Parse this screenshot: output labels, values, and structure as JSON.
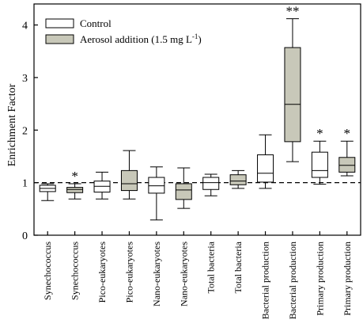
{
  "chart_data": {
    "type": "box",
    "ylabel": "Enrichment Factor",
    "xlabel": "",
    "ylim": [
      0,
      4.4
    ],
    "yticks": [
      0,
      1,
      2,
      3,
      4
    ],
    "reference_line": 1,
    "legend_position": "top-left",
    "series": [
      {
        "name": "Control",
        "color": "#ffffff"
      },
      {
        "name": "Aerosol addition (1.5 mg L",
        "name_sup": "-1",
        "name_suffix": ")",
        "color": "#c8c8b9"
      }
    ],
    "boxes": [
      {
        "category": "Synechococcus",
        "series": 0,
        "whisker_low": 0.66,
        "q1": 0.83,
        "median": 0.89,
        "q3": 0.95,
        "whisker_high": 0.98,
        "sig": ""
      },
      {
        "category": "Synechococcus",
        "series": 1,
        "whisker_low": 0.69,
        "q1": 0.81,
        "median": 0.87,
        "q3": 0.91,
        "whisker_high": 0.98,
        "sig": "*"
      },
      {
        "category": "Pico-eukaryotes",
        "series": 0,
        "whisker_low": 0.69,
        "q1": 0.82,
        "median": 0.93,
        "q3": 1.03,
        "whisker_high": 1.2,
        "sig": ""
      },
      {
        "category": "Pico-eukaryotes",
        "series": 1,
        "whisker_low": 0.69,
        "q1": 0.85,
        "median": 0.98,
        "q3": 1.23,
        "whisker_high": 1.61,
        "sig": ""
      },
      {
        "category": "Nano-eukaryotes",
        "series": 0,
        "whisker_low": 0.29,
        "q1": 0.8,
        "median": 0.94,
        "q3": 1.1,
        "whisker_high": 1.3,
        "sig": ""
      },
      {
        "category": "Nano-eukaryotes",
        "series": 1,
        "whisker_low": 0.51,
        "q1": 0.68,
        "median": 0.86,
        "q3": 0.98,
        "whisker_high": 1.28,
        "sig": ""
      },
      {
        "category": "Total bacteria",
        "series": 0,
        "whisker_low": 0.75,
        "q1": 0.87,
        "median": 1.0,
        "q3": 1.1,
        "whisker_high": 1.16,
        "sig": ""
      },
      {
        "category": "Total bacteria",
        "series": 1,
        "whisker_low": 0.89,
        "q1": 0.96,
        "median": 1.03,
        "q3": 1.15,
        "whisker_high": 1.23,
        "sig": ""
      },
      {
        "category": "Bacterial production",
        "series": 0,
        "whisker_low": 0.89,
        "q1": 1.01,
        "median": 1.18,
        "q3": 1.53,
        "whisker_high": 1.91,
        "sig": ""
      },
      {
        "category": "Bacterial production",
        "series": 1,
        "whisker_low": 1.4,
        "q1": 1.78,
        "median": 2.49,
        "q3": 3.57,
        "whisker_high": 4.12,
        "sig": "**"
      },
      {
        "category": "Primary production",
        "series": 0,
        "whisker_low": 0.97,
        "q1": 1.1,
        "median": 1.23,
        "q3": 1.58,
        "whisker_high": 1.79,
        "sig": "*"
      },
      {
        "category": "Primary production",
        "series": 1,
        "whisker_low": 1.13,
        "q1": 1.2,
        "median": 1.33,
        "q3": 1.48,
        "whisker_high": 1.79,
        "sig": "*"
      }
    ]
  }
}
